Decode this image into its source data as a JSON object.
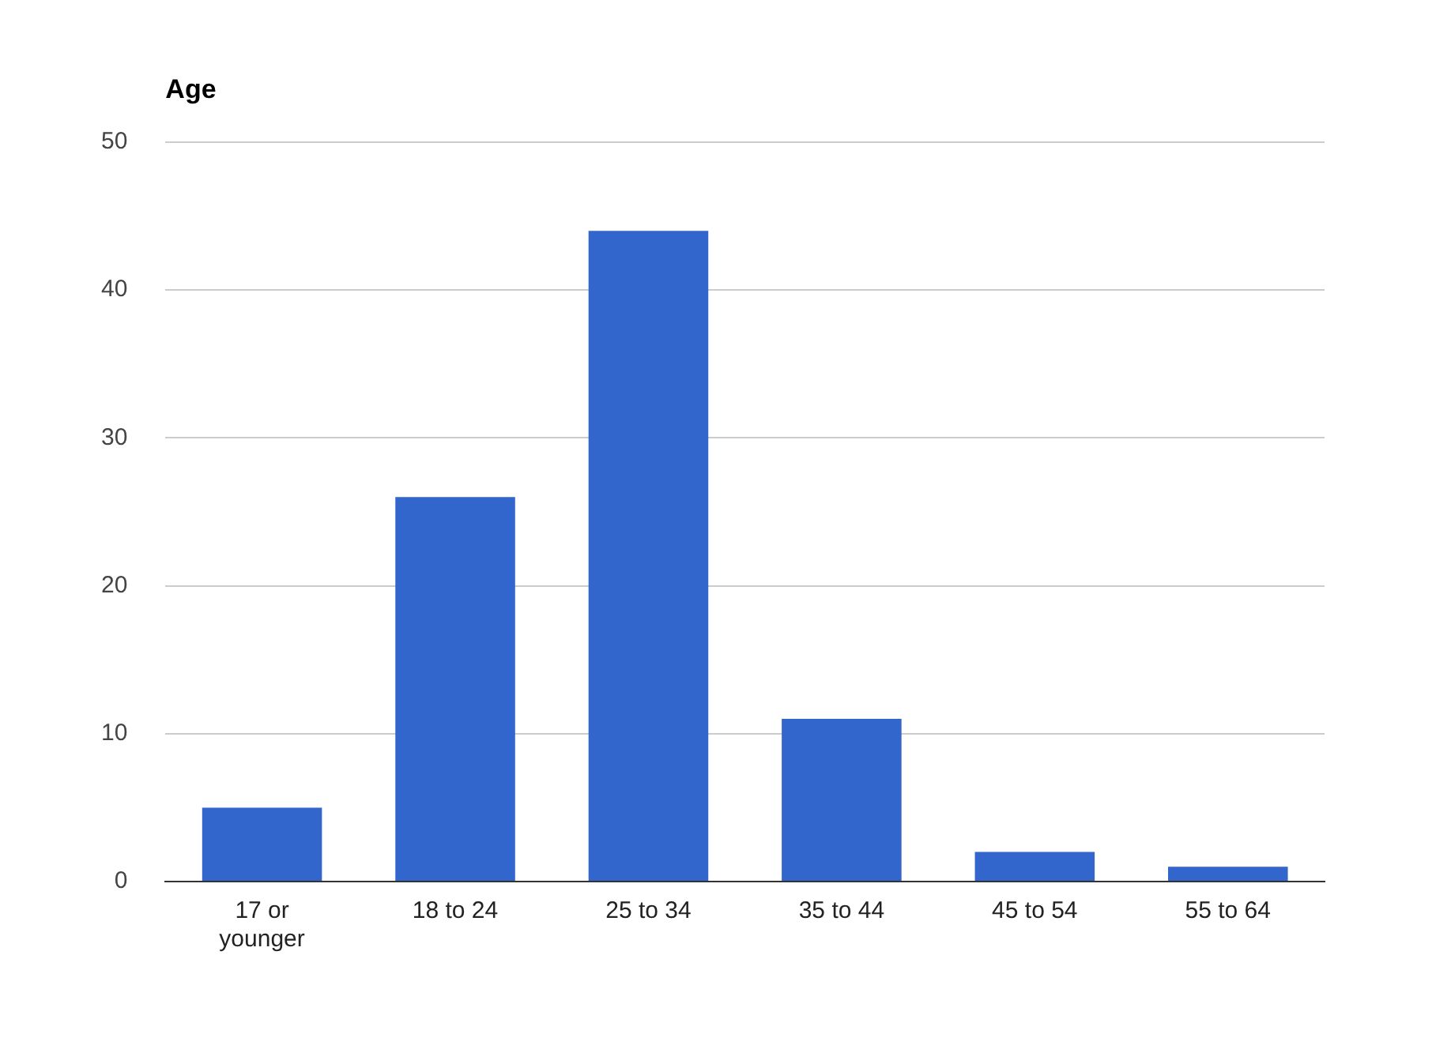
{
  "chart_data": {
    "type": "bar",
    "title": "Age",
    "categories": [
      "17 or younger",
      "18 to 24",
      "25 to 34",
      "35 to 44",
      "45 to 54",
      "55 to 64"
    ],
    "values": [
      5,
      26,
      44,
      11,
      2,
      1
    ],
    "color": "#3366cc",
    "ylim": [
      0,
      50
    ],
    "yticks": [
      0,
      10,
      20,
      30,
      40,
      50
    ],
    "grid": "y",
    "legend": false
  }
}
